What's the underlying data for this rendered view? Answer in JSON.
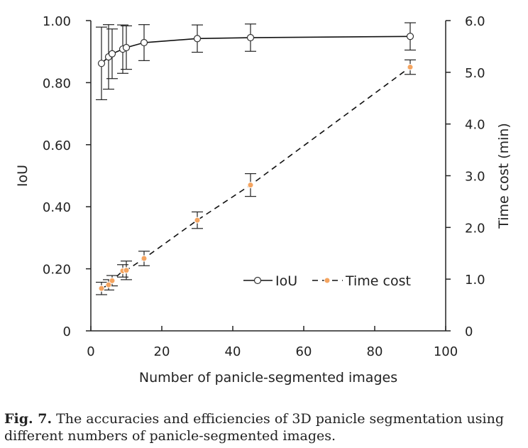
{
  "chart_data": {
    "type": "line",
    "x": [
      3,
      5,
      6,
      9,
      10,
      15,
      30,
      45,
      90
    ],
    "series": [
      {
        "name": "IoU",
        "axis": "left",
        "values": [
          0.862,
          0.883,
          0.893,
          0.908,
          0.913,
          0.929,
          0.942,
          0.945,
          0.949
        ],
        "errors": [
          0.117,
          0.104,
          0.08,
          0.078,
          0.07,
          0.058,
          0.044,
          0.044,
          0.044
        ],
        "line_style": "solid",
        "marker": "open-circle"
      },
      {
        "name": "Time cost",
        "axis": "right",
        "values": [
          0.82,
          0.89,
          0.97,
          1.16,
          1.17,
          1.4,
          2.14,
          2.82,
          5.1
        ],
        "errors": [
          0.12,
          0.1,
          0.1,
          0.12,
          0.18,
          0.14,
          0.16,
          0.22,
          0.14
        ],
        "line_style": "dashed",
        "marker": "filled-circle",
        "marker_color": "#f4a460"
      }
    ],
    "xlabel": "Number of panicle-segmented images",
    "ylabel": "IoU",
    "y2label": "Time cost (min)",
    "xlim": [
      0,
      100
    ],
    "ylim": [
      0,
      1.0
    ],
    "y2lim": [
      0,
      6.0
    ],
    "xticks": [
      "0",
      "20",
      "40",
      "60",
      "80",
      "100"
    ],
    "yticks": [
      "0",
      "0.20",
      "0.40",
      "0.60",
      "0.80",
      "1.00"
    ],
    "y2ticks": [
      "0",
      "1.0",
      "2.0",
      "3.0",
      "4.0",
      "5.0",
      "6.0"
    ],
    "legend_position": "lower-right",
    "grid": false
  },
  "caption": {
    "label": "Fig. 7.",
    "text": " The accuracies and efficiencies of 3D panicle segmentation using different numbers of panicle-segmented images."
  }
}
